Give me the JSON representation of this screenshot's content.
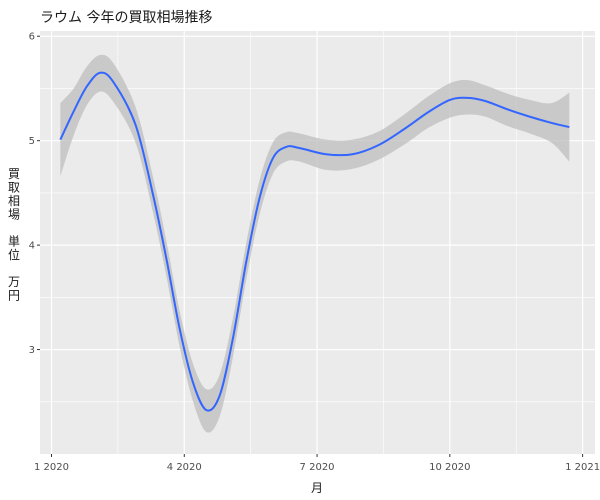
{
  "chart_data": {
    "type": "line",
    "title": "ラウム 今年の買取相場推移",
    "xlabel": "月",
    "ylabel": [
      "買",
      "取",
      "相",
      "場",
      "",
      "単",
      "位",
      "",
      "万",
      "円"
    ],
    "x_ticks": [
      {
        "label": "1 2020",
        "month": 1
      },
      {
        "label": "4 2020",
        "month": 4
      },
      {
        "label": "7 2020",
        "month": 7
      },
      {
        "label": "10 2020",
        "month": 10
      },
      {
        "label": "1 2021",
        "month": 13
      }
    ],
    "y_ticks": [
      3,
      4,
      5,
      6
    ],
    "xlim": [
      0.74,
      13.28
    ],
    "ylim": [
      2.0,
      6.05
    ],
    "grid": true,
    "series": [
      {
        "color": "#3366FF",
        "ribbon_color": "#BEBEBE",
        "points": [
          {
            "x": 1.2,
            "y": 5.01,
            "lo": 4.66,
            "hi": 5.36
          },
          {
            "x": 1.5,
            "y": 5.28,
            "lo": 5.05,
            "hi": 5.5
          },
          {
            "x": 1.8,
            "y": 5.52,
            "lo": 5.34,
            "hi": 5.71
          },
          {
            "x": 2.1,
            "y": 5.65,
            "lo": 5.47,
            "hi": 5.82
          },
          {
            "x": 2.4,
            "y": 5.56,
            "lo": 5.37,
            "hi": 5.74
          },
          {
            "x": 2.9,
            "y": 5.15,
            "lo": 4.98,
            "hi": 5.32
          },
          {
            "x": 3.3,
            "y": 4.47,
            "lo": 4.3,
            "hi": 4.64
          },
          {
            "x": 3.6,
            "y": 3.86,
            "lo": 3.69,
            "hi": 4.03
          },
          {
            "x": 3.9,
            "y": 3.19,
            "lo": 3.02,
            "hi": 3.36
          },
          {
            "x": 4.2,
            "y": 2.68,
            "lo": 2.5,
            "hi": 2.86
          },
          {
            "x": 4.5,
            "y": 2.42,
            "lo": 2.21,
            "hi": 2.62
          },
          {
            "x": 4.8,
            "y": 2.56,
            "lo": 2.36,
            "hi": 2.76
          },
          {
            "x": 5.1,
            "y": 3.11,
            "lo": 2.93,
            "hi": 3.3
          },
          {
            "x": 5.4,
            "y": 3.84,
            "lo": 3.67,
            "hi": 4.02
          },
          {
            "x": 5.7,
            "y": 4.45,
            "lo": 4.29,
            "hi": 4.62
          },
          {
            "x": 6.0,
            "y": 4.83,
            "lo": 4.68,
            "hi": 4.98
          },
          {
            "x": 6.3,
            "y": 4.94,
            "lo": 4.8,
            "hi": 5.08
          },
          {
            "x": 6.6,
            "y": 4.93,
            "lo": 4.8,
            "hi": 5.07
          },
          {
            "x": 7.2,
            "y": 4.87,
            "lo": 4.72,
            "hi": 5.01
          },
          {
            "x": 7.8,
            "y": 4.87,
            "lo": 4.73,
            "hi": 5.01
          },
          {
            "x": 8.4,
            "y": 4.96,
            "lo": 4.82,
            "hi": 5.09
          },
          {
            "x": 9.0,
            "y": 5.12,
            "lo": 4.97,
            "hi": 5.26
          },
          {
            "x": 9.5,
            "y": 5.27,
            "lo": 5.12,
            "hi": 5.42
          },
          {
            "x": 10.0,
            "y": 5.39,
            "lo": 5.22,
            "hi": 5.55
          },
          {
            "x": 10.4,
            "y": 5.41,
            "lo": 5.25,
            "hi": 5.58
          },
          {
            "x": 10.8,
            "y": 5.38,
            "lo": 5.23,
            "hi": 5.53
          },
          {
            "x": 11.3,
            "y": 5.3,
            "lo": 5.14,
            "hi": 5.45
          },
          {
            "x": 11.8,
            "y": 5.23,
            "lo": 5.07,
            "hi": 5.39
          },
          {
            "x": 12.3,
            "y": 5.17,
            "lo": 4.98,
            "hi": 5.36
          },
          {
            "x": 12.7,
            "y": 5.13,
            "lo": 4.8,
            "hi": 5.46
          }
        ]
      }
    ]
  },
  "colors": {
    "panel_background": "#EBEBEB",
    "grid_major": "#FFFFFF",
    "line": "#3366FF",
    "ribbon": "#BEBEBE"
  }
}
